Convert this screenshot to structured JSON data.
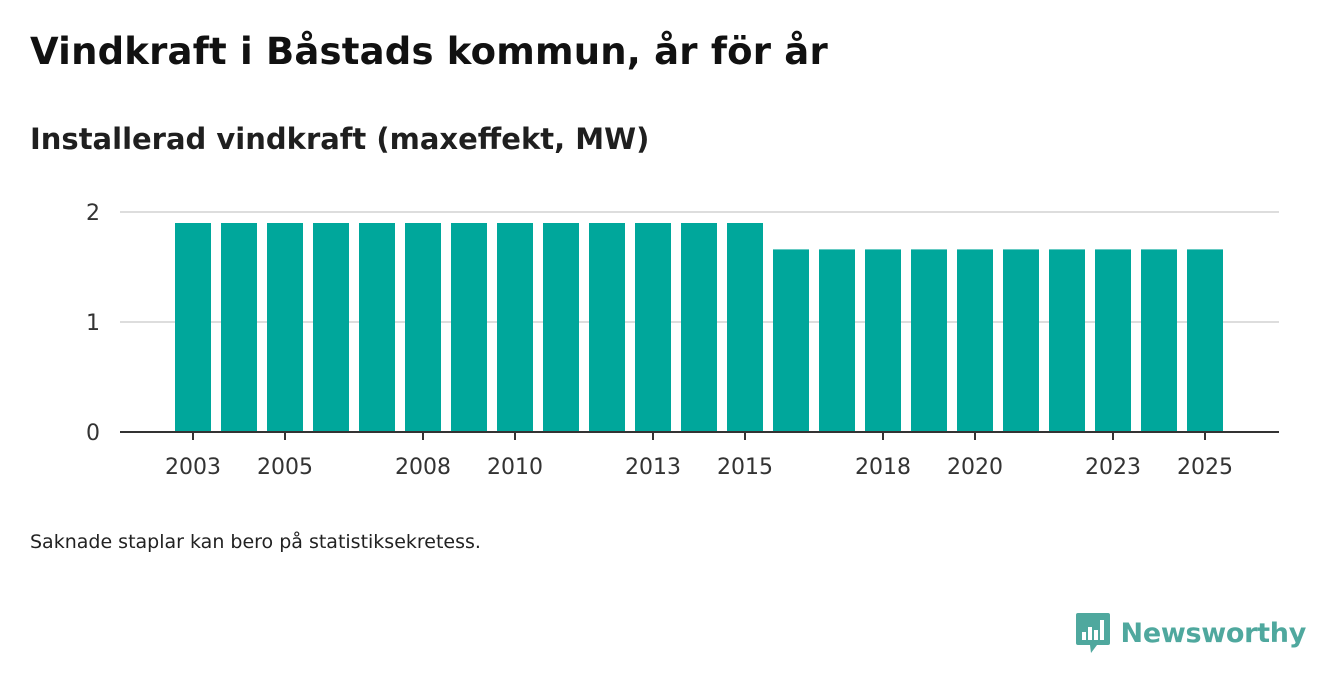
{
  "title": "Vindkraft i Båstads kommun, år för år",
  "subtitle": "Installerad vindkraft (maxeffekt, MW)",
  "footnote": "Saknade staplar kan bero på statistiksekretess.",
  "brand": {
    "name": "Newsworthy",
    "icon": "bar-chart-speech-bubble-icon",
    "color": "#4fa89e"
  },
  "chart_data": {
    "type": "bar",
    "title": "Installerad vindkraft (maxeffekt, MW)",
    "xlabel": "",
    "ylabel": "",
    "ylim": [
      0,
      2
    ],
    "yticks": [
      0,
      1,
      2
    ],
    "grid": true,
    "bar_color": "#00a79b",
    "categories": [
      "2003",
      "2004",
      "2005",
      "2006",
      "2007",
      "2008",
      "2009",
      "2010",
      "2011",
      "2012",
      "2013",
      "2014",
      "2015",
      "2016",
      "2017",
      "2018",
      "2019",
      "2020",
      "2021",
      "2022",
      "2023",
      "2024",
      "2025"
    ],
    "x_tick_labels": [
      "2003",
      "2005",
      "2008",
      "2010",
      "2013",
      "2015",
      "2018",
      "2020",
      "2023",
      "2025"
    ],
    "values": [
      1.9,
      1.9,
      1.9,
      1.9,
      1.9,
      1.9,
      1.9,
      1.9,
      1.9,
      1.9,
      1.9,
      1.9,
      1.9,
      1.66,
      1.66,
      1.66,
      1.66,
      1.66,
      1.66,
      1.66,
      1.66,
      1.66,
      1.66
    ]
  }
}
